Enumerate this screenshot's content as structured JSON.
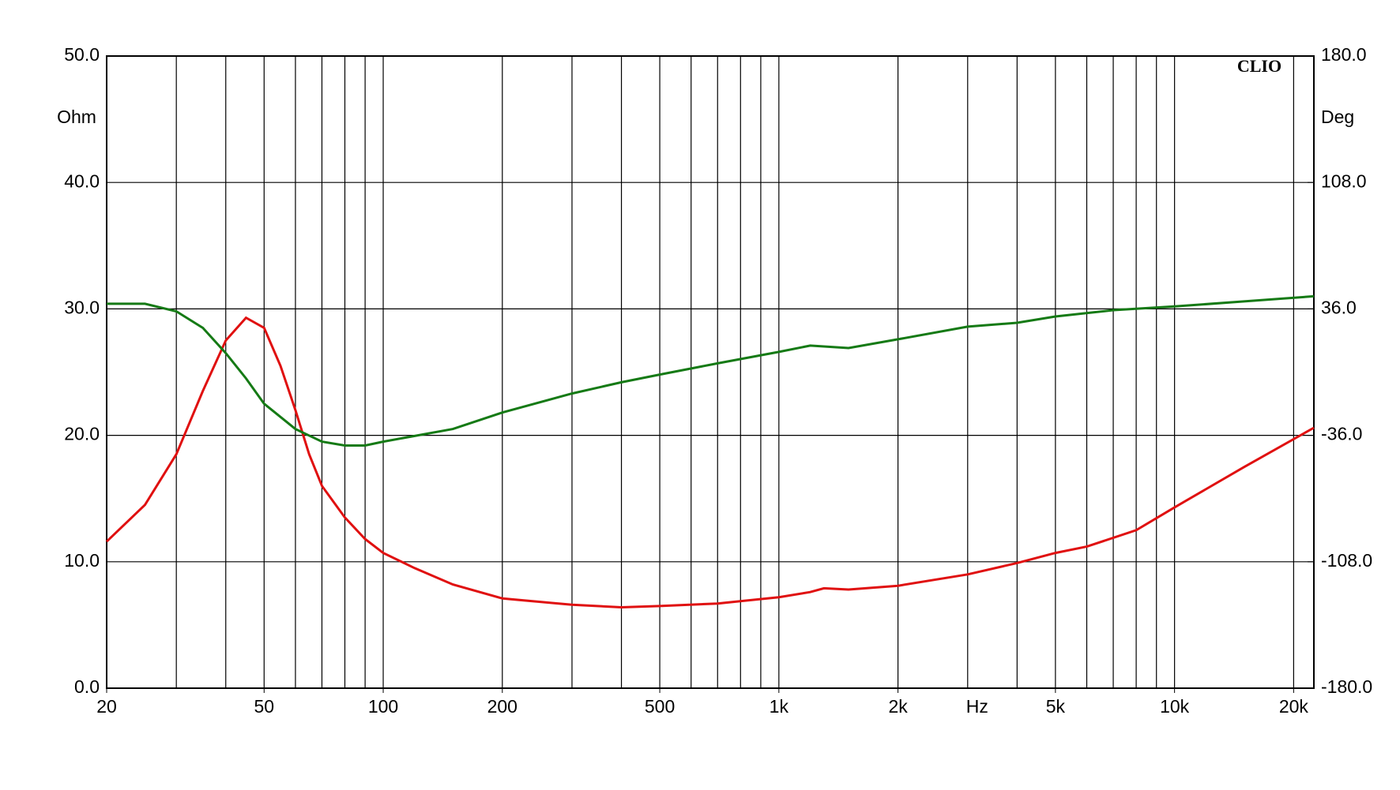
{
  "chart_data": {
    "type": "line",
    "watermark": "CLIO",
    "x_unit": "Hz",
    "y_label": "Ohm",
    "y2_label": "Deg",
    "log_x": true,
    "grid": true,
    "xlim": [
      20,
      22500
    ],
    "xticks": [
      {
        "value": 20,
        "label": "20"
      },
      {
        "value": 50,
        "label": "50"
      },
      {
        "value": 100,
        "label": "100"
      },
      {
        "value": 200,
        "label": "200"
      },
      {
        "value": 500,
        "label": "500"
      },
      {
        "value": 1000,
        "label": "1k"
      },
      {
        "value": 2000,
        "label": "2k"
      },
      {
        "value": 5000,
        "label": "5k"
      },
      {
        "value": 10000,
        "label": "10k"
      },
      {
        "value": 20000,
        "label": "20k"
      }
    ],
    "x_unit_at": 3000,
    "xgrid": [
      20,
      30,
      40,
      50,
      60,
      70,
      80,
      90,
      100,
      200,
      300,
      400,
      500,
      600,
      700,
      800,
      900,
      1000,
      2000,
      3000,
      4000,
      5000,
      6000,
      7000,
      8000,
      9000,
      10000,
      20000
    ],
    "ylim": [
      0,
      50
    ],
    "yticks": [
      {
        "value": 0,
        "label": "0.0"
      },
      {
        "value": 10,
        "label": "10.0"
      },
      {
        "value": 20,
        "label": "20.0"
      },
      {
        "value": 30,
        "label": "30.0"
      },
      {
        "value": 40,
        "label": "40.0"
      },
      {
        "value": 50,
        "label": "50.0"
      }
    ],
    "y2lim": [
      -180,
      180
    ],
    "y2ticks": [
      {
        "value": -180,
        "label": "-180.0"
      },
      {
        "value": -108,
        "label": "-108.0"
      },
      {
        "value": -36,
        "label": "-36.0"
      },
      {
        "value": 36,
        "label": "36.0"
      },
      {
        "value": 108,
        "label": "108.0"
      },
      {
        "value": 180,
        "label": "180.0"
      }
    ],
    "series": [
      {
        "color": "#e01010",
        "axis": "y",
        "x": [
          20,
          25,
          30,
          35,
          40,
          45,
          50,
          55,
          60,
          65,
          70,
          80,
          90,
          100,
          120,
          150,
          200,
          300,
          400,
          500,
          700,
          1000,
          1200,
          1300,
          1500,
          2000,
          3000,
          4000,
          5000,
          6000,
          8000,
          10000,
          15000,
          22500
        ],
        "values": [
          11.6,
          14.5,
          18.5,
          23.5,
          27.5,
          29.3,
          28.5,
          25.5,
          22,
          18.5,
          16,
          13.5,
          11.8,
          10.7,
          9.5,
          8.2,
          7.1,
          6.6,
          6.4,
          6.5,
          6.7,
          7.2,
          7.6,
          7.9,
          7.8,
          8.1,
          9.0,
          9.9,
          10.7,
          11.2,
          12.5,
          14.3,
          17.5,
          20.6
        ]
      },
      {
        "color": "#157a15",
        "axis": "y2",
        "x": [
          20,
          25,
          30,
          35,
          40,
          45,
          50,
          60,
          70,
          80,
          90,
          100,
          150,
          200,
          300,
          400,
          500,
          700,
          1000,
          1200,
          1500,
          2000,
          3000,
          4000,
          5000,
          7000,
          10000,
          22500
        ],
        "values": [
          38.9,
          38.9,
          34.6,
          25.2,
          10.8,
          -3.6,
          -18,
          -32.4,
          -39.6,
          -41.8,
          -41.8,
          -39.6,
          -32.4,
          -23.0,
          -12.2,
          -5.8,
          -1.4,
          5.0,
          11.5,
          15.1,
          13.7,
          18.7,
          25.9,
          28.1,
          31.7,
          35.3,
          37.4,
          43.2
        ]
      }
    ]
  }
}
